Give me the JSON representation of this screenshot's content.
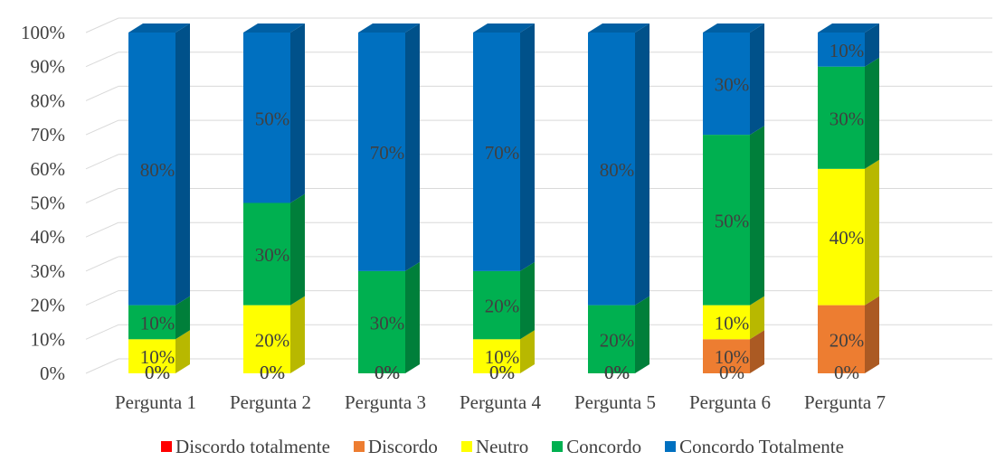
{
  "chart_data": {
    "type": "bar",
    "stacked": true,
    "three_d": true,
    "categories": [
      "Pergunta 1",
      "Pergunta 2",
      "Pergunta 3",
      "Pergunta 4",
      "Pergunta 5",
      "Pergunta 6",
      "Pergunta 7"
    ],
    "series": [
      {
        "name": "Discordo totalmente",
        "color": "#ff0000",
        "values": [
          0,
          0,
          0,
          0,
          0,
          0,
          0
        ]
      },
      {
        "name": "Discordo",
        "color": "#ed7d31",
        "values": [
          0,
          0,
          0,
          0,
          0,
          10,
          20
        ]
      },
      {
        "name": "Neutro",
        "color": "#ffff00",
        "values": [
          10,
          20,
          0,
          10,
          0,
          10,
          40
        ]
      },
      {
        "name": "Concordo",
        "color": "#00b050",
        "values": [
          10,
          30,
          30,
          20,
          20,
          50,
          30
        ]
      },
      {
        "name": "Concordo Totalmente",
        "color": "#0070c0",
        "values": [
          80,
          50,
          70,
          70,
          80,
          30,
          10
        ]
      }
    ],
    "y_ticks": [
      "0%",
      "10%",
      "20%",
      "30%",
      "40%",
      "50%",
      "60%",
      "70%",
      "80%",
      "90%",
      "100%"
    ],
    "ylim": [
      0,
      100
    ],
    "grid": true,
    "legend_position": "bottom",
    "title": "",
    "xlabel": "",
    "ylabel": ""
  }
}
